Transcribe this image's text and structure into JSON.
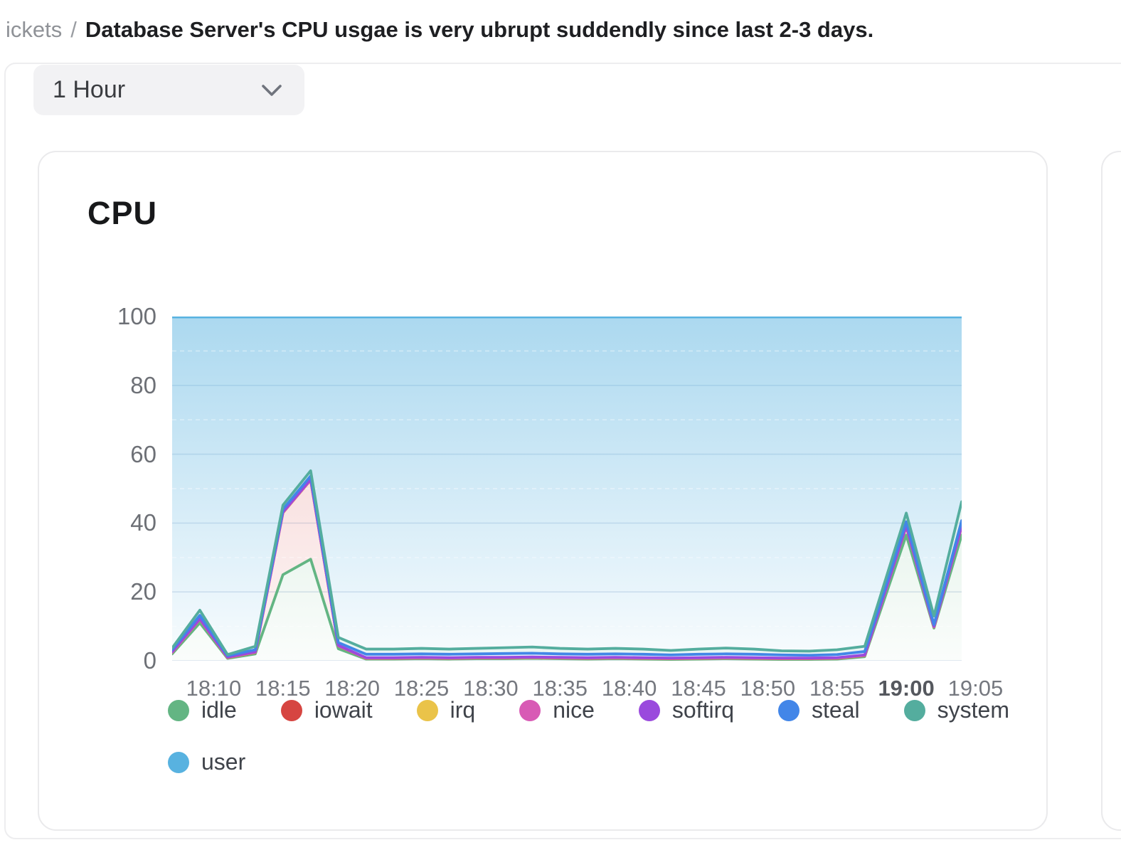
{
  "breadcrumb": {
    "section": "ickets",
    "separator": "/",
    "title": "Database Server's CPU usgae is very ubrupt suddendly since last 2-3 days."
  },
  "toolbar": {
    "time_range": "1 Hour",
    "chevron_icon": "chevron-down"
  },
  "chart_card": {
    "title": "CPU"
  },
  "chart_data": {
    "type": "area",
    "stacked": true,
    "stack_total": 100,
    "title": "CPU",
    "grid": true,
    "legend_position": "bottom",
    "ylim": [
      0,
      100
    ],
    "y_ticks": [
      100,
      80,
      60,
      40,
      20,
      0
    ],
    "x_ticks": [
      "18:10",
      "18:15",
      "18:20",
      "18:25",
      "18:30",
      "18:35",
      "18:40",
      "18:45",
      "18:50",
      "18:55",
      "19:00",
      "19:05"
    ],
    "x_tick_bold": "19:00",
    "x": [
      "18:07",
      "18:09",
      "18:11",
      "18:13",
      "18:15",
      "18:17",
      "18:19",
      "18:21",
      "18:23",
      "18:25",
      "18:27",
      "18:29",
      "18:31",
      "18:33",
      "18:35",
      "18:37",
      "18:39",
      "18:41",
      "18:43",
      "18:45",
      "18:47",
      "18:49",
      "18:51",
      "18:53",
      "18:55",
      "18:57",
      "19:00",
      "19:02",
      "19:04"
    ],
    "series": [
      {
        "name": "idle",
        "color": "#63b583",
        "values": [
          2,
          11,
          0.7,
          2,
          25,
          29.5,
          3.5,
          0.5,
          0.5,
          0.6,
          0.5,
          0.6,
          0.6,
          0.7,
          0.6,
          0.5,
          0.6,
          0.5,
          0.4,
          0.5,
          0.6,
          0.5,
          0.4,
          0.4,
          0.5,
          1.2,
          36.5,
          9.5,
          36.5
        ]
      },
      {
        "name": "iowait",
        "color": "#d64541",
        "values": [
          0.4,
          1,
          0.2,
          0.4,
          18,
          23,
          0.8,
          0.2,
          0.2,
          0.2,
          0.2,
          0.2,
          0.2,
          0.2,
          0.2,
          0.2,
          0.2,
          0.2,
          0.2,
          0.2,
          0.2,
          0.2,
          0.2,
          0.2,
          0.2,
          0.3,
          2.5,
          0.3,
          2.5
        ]
      },
      {
        "name": "irq",
        "color": "#eac349",
        "values": [
          0.05,
          0.05,
          0.05,
          0.05,
          0.05,
          0.05,
          0.05,
          0.05,
          0.05,
          0.05,
          0.05,
          0.05,
          0.05,
          0.05,
          0.05,
          0.05,
          0.05,
          0.05,
          0.05,
          0.05,
          0.05,
          0.05,
          0.05,
          0.05,
          0.05,
          0.05,
          0.05,
          0.05,
          0.05
        ]
      },
      {
        "name": "nice",
        "color": "#d85ab5",
        "values": [
          0.05,
          0.05,
          0.05,
          0.05,
          0.05,
          0.05,
          0.05,
          0.05,
          0.05,
          0.05,
          0.05,
          0.05,
          0.05,
          0.05,
          0.05,
          0.05,
          0.05,
          0.05,
          0.05,
          0.05,
          0.05,
          0.05,
          0.05,
          0.05,
          0.05,
          0.05,
          0.05,
          0.05,
          0.05
        ]
      },
      {
        "name": "softirq",
        "color": "#9a4add",
        "values": [
          0.1,
          0.1,
          0.1,
          0.1,
          0.1,
          0.1,
          0.1,
          0.1,
          0.1,
          0.1,
          0.1,
          0.1,
          0.1,
          0.1,
          0.1,
          0.1,
          0.1,
          0.1,
          0.1,
          0.1,
          0.1,
          0.1,
          0.1,
          0.1,
          0.1,
          0.1,
          0.1,
          0.1,
          0.1
        ]
      },
      {
        "name": "steal",
        "color": "#4286e8",
        "values": [
          0.6,
          1,
          0.4,
          0.6,
          0.8,
          1,
          0.8,
          1.0,
          1.0,
          1.0,
          1.0,
          1.0,
          1.1,
          1.1,
          1.0,
          1.0,
          1.0,
          1.0,
          0.9,
          1.0,
          1.0,
          1.0,
          0.9,
          0.8,
          0.9,
          1.0,
          1.2,
          0.5,
          1.5
        ]
      },
      {
        "name": "system",
        "color": "#54ad9e",
        "values": [
          0.5,
          1.5,
          0.3,
          1,
          1.2,
          1.5,
          1.5,
          1.5,
          1.5,
          1.6,
          1.5,
          1.6,
          1.7,
          1.8,
          1.6,
          1.5,
          1.6,
          1.5,
          1.3,
          1.5,
          1.7,
          1.5,
          1.2,
          1.2,
          1.4,
          1.5,
          2.5,
          2.5,
          5.5
        ]
      },
      {
        "name": "user",
        "color": "#58b2e0",
        "values": [
          96.3,
          85.3,
          98.2,
          95.8,
          54.8,
          44.8,
          93.2,
          96.6,
          96.6,
          96.4,
          96.6,
          96.4,
          96.2,
          96.0,
          96.4,
          96.6,
          96.4,
          96.6,
          97.0,
          96.6,
          96.3,
          96.6,
          97.1,
          97.2,
          96.8,
          95.8,
          57.1,
          87.0,
          53.8
        ]
      }
    ]
  }
}
